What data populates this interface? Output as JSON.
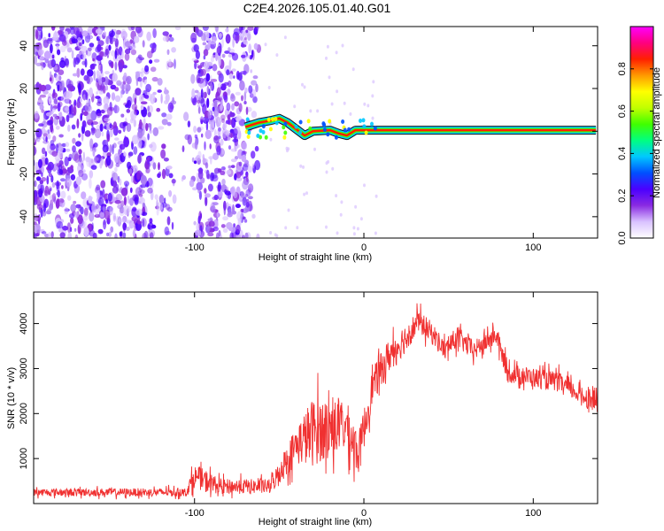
{
  "chart_data": [
    {
      "type": "heatmap",
      "title": "C2E4.2026.105.01.40.G01",
      "xlabel": "Height of straight line (km)",
      "ylabel": "Frequency (Hz)",
      "xlim": [
        -195,
        138
      ],
      "ylim": [
        -50,
        49
      ],
      "xticks": [
        -100,
        0,
        100
      ],
      "xtick_labels": [
        "-100",
        "0",
        "100"
      ],
      "yticks": [
        -40,
        -20,
        0,
        20,
        40
      ],
      "ytick_labels": [
        "-40",
        "-20",
        "0",
        "20",
        "40"
      ],
      "colorbar": {
        "label": "Normalized spectral amplitude",
        "range": [
          0.0,
          1.0
        ],
        "ticks": [
          0.0,
          0.2,
          0.4,
          0.6,
          0.8
        ],
        "tick_labels": [
          "0.0",
          "0.2",
          "0.4",
          "0.6",
          "0.8"
        ],
        "colors": [
          "#ffffff",
          "#d9c2ff",
          "#8a2be2",
          "#4b00ff",
          "#0050ff",
          "#00c8ff",
          "#00ff80",
          "#40ff00",
          "#c0ff00",
          "#ffff00",
          "#ff9900",
          "#ff2000",
          "#ff0080",
          "#ff00ff"
        ]
      },
      "noise_region_km": [
        -195,
        -62
      ],
      "signal_track": [
        {
          "x": -70,
          "y": 2
        },
        {
          "x": -62,
          "y": 4
        },
        {
          "x": -55,
          "y": 5
        },
        {
          "x": -50,
          "y": 6
        },
        {
          "x": -45,
          "y": 4
        },
        {
          "x": -40,
          "y": 1
        },
        {
          "x": -35,
          "y": -2
        },
        {
          "x": -30,
          "y": 0
        },
        {
          "x": -20,
          "y": 0.5
        },
        {
          "x": -15,
          "y": -1
        },
        {
          "x": -10,
          "y": -2
        },
        {
          "x": -5,
          "y": 0.5
        },
        {
          "x": 10,
          "y": 0.5
        },
        {
          "x": 50,
          "y": 0.5
        },
        {
          "x": 100,
          "y": 0.5
        },
        {
          "x": 137,
          "y": 0.5
        }
      ]
    },
    {
      "type": "line",
      "xlabel": "Height of straight line (km)",
      "ylabel": "SNR (10 * v/v)",
      "xlim": [
        -195,
        138
      ],
      "ylim": [
        0,
        4700
      ],
      "xticks": [
        -100,
        0,
        100
      ],
      "xtick_labels": [
        "-100",
        "0",
        "100"
      ],
      "yticks": [
        1000,
        2000,
        3000,
        4000
      ],
      "ytick_labels": [
        "1000",
        "2000",
        "3000",
        "4000"
      ],
      "color": "#f03030",
      "series": [
        {
          "name": "SNR",
          "envelope": [
            {
              "x": -195,
              "mean": 250,
              "amp": 150
            },
            {
              "x": -105,
              "mean": 250,
              "amp": 170
            },
            {
              "x": -100,
              "mean": 600,
              "amp": 450
            },
            {
              "x": -93,
              "mean": 500,
              "amp": 450
            },
            {
              "x": -85,
              "mean": 380,
              "amp": 300
            },
            {
              "x": -55,
              "mean": 380,
              "amp": 300
            },
            {
              "x": -50,
              "mean": 700,
              "amp": 500
            },
            {
              "x": -40,
              "mean": 1300,
              "amp": 800
            },
            {
              "x": -30,
              "mean": 1600,
              "amp": 1400
            },
            {
              "x": -20,
              "mean": 1700,
              "amp": 1200
            },
            {
              "x": -10,
              "mean": 1700,
              "amp": 1000
            },
            {
              "x": -3,
              "mean": 1100,
              "amp": 900
            },
            {
              "x": 5,
              "mean": 2600,
              "amp": 700
            },
            {
              "x": 15,
              "mean": 3300,
              "amp": 700
            },
            {
              "x": 25,
              "mean": 3700,
              "amp": 600
            },
            {
              "x": 32,
              "mean": 4050,
              "amp": 450
            },
            {
              "x": 40,
              "mean": 3800,
              "amp": 450
            },
            {
              "x": 48,
              "mean": 3400,
              "amp": 400
            },
            {
              "x": 55,
              "mean": 3700,
              "amp": 450
            },
            {
              "x": 65,
              "mean": 3400,
              "amp": 400
            },
            {
              "x": 78,
              "mean": 3750,
              "amp": 400
            },
            {
              "x": 85,
              "mean": 2900,
              "amp": 400
            },
            {
              "x": 100,
              "mean": 2800,
              "amp": 400
            },
            {
              "x": 115,
              "mean": 2700,
              "amp": 400
            },
            {
              "x": 128,
              "mean": 2400,
              "amp": 350
            },
            {
              "x": 137,
              "mean": 2300,
              "amp": 500
            }
          ]
        }
      ]
    }
  ]
}
